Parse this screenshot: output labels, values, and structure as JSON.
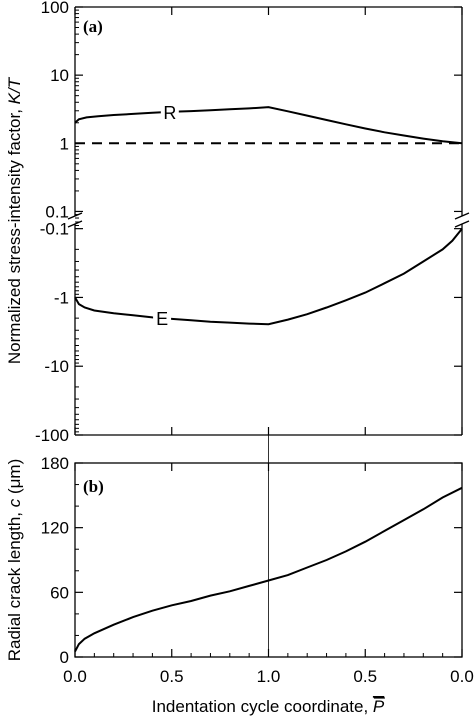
{
  "chart_data": [
    {
      "panel": "(a)",
      "type": "line",
      "scale": "log",
      "ylabel": "Normalized stress-intensity factor, ",
      "ylabel_symbol": "K/T",
      "ticks": [
        "100",
        "10",
        "1",
        "0.1"
      ],
      "tick_values": [
        100,
        10,
        1,
        0.1
      ],
      "ylim": [
        0.07,
        100
      ],
      "series": [
        {
          "name": "R",
          "x": [
            0.0,
            0.02,
            0.06,
            0.12,
            0.2,
            0.3,
            0.4,
            0.5,
            0.6,
            0.7,
            0.8,
            0.9,
            1.0,
            1.1,
            1.2,
            1.3,
            1.4,
            1.5,
            1.6,
            1.7,
            1.8,
            1.9,
            2.0
          ],
          "y": [
            2.0,
            2.25,
            2.4,
            2.5,
            2.6,
            2.7,
            2.8,
            2.9,
            2.97,
            3.05,
            3.15,
            3.25,
            3.4,
            2.95,
            2.55,
            2.2,
            1.9,
            1.65,
            1.45,
            1.3,
            1.17,
            1.07,
            1.0
          ]
        },
        {
          "name": "",
          "style": "dashed",
          "x": [
            0.0,
            2.0
          ],
          "y": [
            1,
            1
          ]
        }
      ]
    },
    {
      "panel": "",
      "type": "line",
      "scale": "log-negative",
      "ticks": [
        "-0.1",
        "-1",
        "-10",
        "-100"
      ],
      "tick_values": [
        -0.1,
        -1,
        -10,
        -100
      ],
      "ylim": [
        -100,
        -0.07
      ],
      "series": [
        {
          "name": "E",
          "x": [
            0.0,
            0.02,
            0.05,
            0.1,
            0.2,
            0.3,
            0.4,
            0.5,
            0.6,
            0.7,
            0.8,
            0.9,
            1.0,
            1.1,
            1.2,
            1.3,
            1.4,
            1.5,
            1.6,
            1.7,
            1.8,
            1.9,
            1.95,
            2.0
          ],
          "y": [
            -1.0,
            -1.25,
            -1.4,
            -1.55,
            -1.7,
            -1.82,
            -1.95,
            -2.05,
            -2.15,
            -2.25,
            -2.32,
            -2.4,
            -2.45,
            -2.1,
            -1.75,
            -1.4,
            -1.1,
            -0.85,
            -0.62,
            -0.45,
            -0.3,
            -0.2,
            -0.15,
            -0.1
          ]
        }
      ]
    },
    {
      "panel": "(b)",
      "type": "line",
      "ylabel": "Radial crack length, ",
      "ylabel_symbol": "c",
      "ylabel_unit": " (μm)",
      "ticks": [
        "180",
        "120",
        "60",
        "0"
      ],
      "tick_values": [
        180,
        120,
        60,
        0
      ],
      "ylim": [
        0,
        180
      ],
      "xlabel": "Indentation cycle coordinate, ",
      "xlabel_symbol": "P",
      "xticks": [
        "0.0",
        "0.5",
        "1.0",
        "0.5",
        "0.0"
      ],
      "xtick_positions": [
        0,
        0.5,
        1.0,
        1.5,
        2.0
      ],
      "xlim": [
        0,
        2
      ],
      "series": [
        {
          "name": "",
          "x": [
            0.0,
            0.02,
            0.05,
            0.1,
            0.2,
            0.3,
            0.4,
            0.5,
            0.6,
            0.7,
            0.8,
            0.9,
            1.0,
            1.1,
            1.2,
            1.3,
            1.4,
            1.5,
            1.6,
            1.7,
            1.8,
            1.9,
            2.0
          ],
          "y": [
            5,
            12,
            17,
            22,
            30,
            37,
            43,
            48,
            52,
            57,
            61,
            66,
            71,
            76,
            83,
            90,
            98,
            107,
            117,
            127,
            137,
            148,
            157
          ]
        }
      ]
    }
  ]
}
